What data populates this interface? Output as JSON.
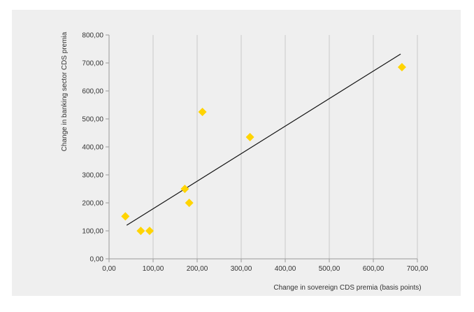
{
  "chart_data": {
    "type": "scatter",
    "title": "",
    "xlabel": "Change in sovereign CDS premia (basis points)",
    "ylabel": "Change in banking sector CDS premia",
    "xlim": [
      0,
      700
    ],
    "ylim": [
      0,
      800
    ],
    "x_ticks": [
      "0,00",
      "100,00",
      "200,00",
      "300,00",
      "400,00",
      "500,00",
      "600,00",
      "700,00"
    ],
    "y_ticks": [
      "0,00",
      "100,00",
      "200,00",
      "300,00",
      "400,00",
      "500,00",
      "600,00",
      "700,00",
      "800,00"
    ],
    "grid": "vertical",
    "series": [
      {
        "marker": "diamond",
        "points": [
          {
            "x": 37,
            "y": 152
          },
          {
            "x": 72,
            "y": 100
          },
          {
            "x": 92,
            "y": 100
          },
          {
            "x": 172,
            "y": 250
          },
          {
            "x": 182,
            "y": 200
          },
          {
            "x": 212,
            "y": 525
          },
          {
            "x": 320,
            "y": 435
          },
          {
            "x": 665,
            "y": 685
          }
        ]
      }
    ],
    "trendline": {
      "x": [
        40,
        662
      ],
      "y": [
        120,
        732
      ]
    },
    "colors": {
      "background": "#efefef",
      "marker": "#ffd400",
      "trendline": "#111111",
      "grid": "#c8c8c8",
      "axis": "#9a9a9a"
    }
  }
}
